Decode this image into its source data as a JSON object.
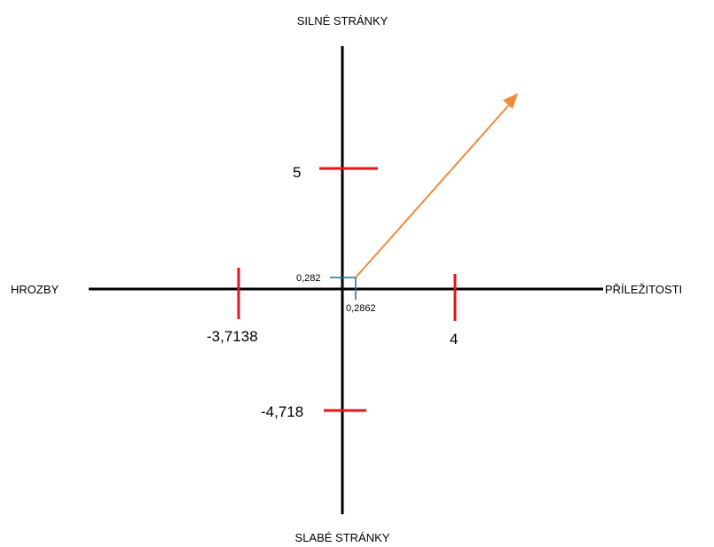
{
  "axes": {
    "top": "SILNÉ STRÁNKY",
    "bottom": "SLABÉ STRÁNKY",
    "left": "HROZBY",
    "right": "PŘÍLEŽITOSTI"
  },
  "values": {
    "strengths": "5",
    "weaknesses": "-4,718",
    "opportunities": "4",
    "threats": "-3,7138"
  },
  "result": {
    "y_label": "0,282",
    "x_label": "0,2862"
  },
  "colors": {
    "axis": "#000000",
    "tick": "#e8121a",
    "guide": "#1f6f8b",
    "arrow": "#f08a3c"
  }
}
